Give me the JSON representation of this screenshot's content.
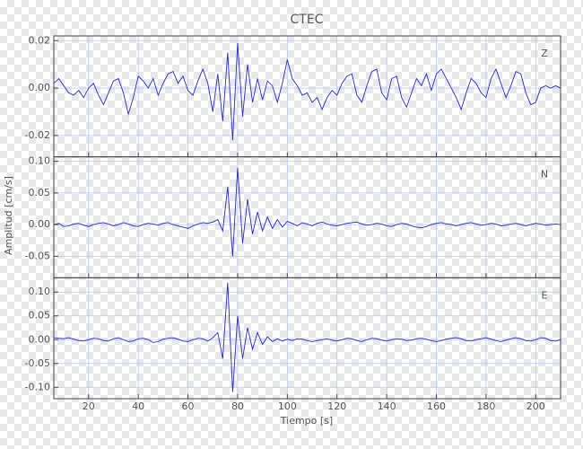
{
  "chart_data": {
    "type": "line",
    "title": "CTEC",
    "xlabel": "Tiempo [s]",
    "ylabel": "Amplitud [cm/s]",
    "grid": true,
    "xlim": [
      6,
      210
    ],
    "xticks": [
      20,
      40,
      60,
      80,
      100,
      120,
      140,
      160,
      180,
      200
    ],
    "x": [
      6,
      8,
      10,
      12,
      14,
      16,
      18,
      20,
      22,
      24,
      26,
      28,
      30,
      32,
      34,
      36,
      38,
      40,
      42,
      44,
      46,
      48,
      50,
      52,
      54,
      56,
      58,
      60,
      62,
      64,
      66,
      68,
      70,
      72,
      74,
      76,
      78,
      80,
      82,
      84,
      86,
      88,
      90,
      92,
      94,
      96,
      98,
      100,
      102,
      104,
      106,
      108,
      110,
      112,
      114,
      116,
      118,
      120,
      122,
      124,
      126,
      128,
      130,
      132,
      134,
      136,
      138,
      140,
      142,
      144,
      146,
      148,
      150,
      152,
      154,
      156,
      158,
      160,
      162,
      164,
      166,
      168,
      170,
      172,
      174,
      176,
      178,
      180,
      182,
      184,
      186,
      188,
      190,
      192,
      194,
      196,
      198,
      200,
      202,
      204,
      206,
      208,
      210
    ],
    "series": [
      {
        "name": "Z",
        "color": "#2a2ac0",
        "ylim": [
          -0.029,
          0.022
        ],
        "yticks": [
          {
            "value": 0.02,
            "label": "0.02"
          },
          {
            "value": 0,
            "label": "0.00"
          },
          {
            "value": -0.02,
            "label": "-0.02"
          }
        ],
        "values": [
          0.002,
          0.004,
          0.001,
          -0.002,
          -0.003,
          -0.001,
          -0.004,
          0.0,
          0.002,
          -0.003,
          -0.007,
          -0.002,
          0.003,
          0.004,
          -0.002,
          -0.011,
          -0.004,
          0.005,
          0.003,
          0.0,
          0.004,
          -0.003,
          0.002,
          0.006,
          0.007,
          0.002,
          0.005,
          -0.001,
          -0.003,
          0.003,
          0.008,
          0.002,
          -0.01,
          0.006,
          -0.014,
          0.015,
          -0.022,
          0.019,
          -0.012,
          0.01,
          -0.006,
          0.004,
          -0.005,
          0.003,
          0.001,
          -0.006,
          0.002,
          0.012,
          0.004,
          0.001,
          -0.003,
          -0.002,
          -0.006,
          -0.004,
          -0.009,
          -0.004,
          -0.001,
          -0.003,
          0.002,
          0.005,
          0.006,
          -0.003,
          -0.006,
          0.001,
          0.007,
          0.008,
          -0.002,
          -0.005,
          0.004,
          0.005,
          -0.004,
          -0.008,
          -0.002,
          0.004,
          0.001,
          0.006,
          -0.001,
          0.006,
          0.008,
          0.004,
          0.0,
          -0.004,
          -0.009,
          -0.002,
          0.004,
          0.002,
          -0.002,
          -0.004,
          0.004,
          0.008,
          0.002,
          -0.004,
          0.001,
          0.007,
          0.006,
          -0.002,
          -0.007,
          -0.006,
          0.0,
          0.001,
          0.0,
          0.001,
          0.0
        ]
      },
      {
        "name": "N",
        "color": "#2a2ac0",
        "ylim": [
          -0.084,
          0.107
        ],
        "yticks": [
          {
            "value": 0.1,
            "label": "0.10"
          },
          {
            "value": 0.05,
            "label": "0.05"
          },
          {
            "value": 0,
            "label": "0.00"
          },
          {
            "value": -0.05,
            "label": "-0.05"
          }
        ],
        "values": [
          0.0,
          0.002,
          -0.003,
          -0.002,
          0.001,
          0.002,
          -0.001,
          -0.003,
          0.0,
          0.002,
          0.003,
          0.001,
          -0.002,
          0.0,
          0.003,
          0.001,
          -0.002,
          -0.003,
          0.0,
          0.002,
          0.001,
          -0.001,
          0.002,
          0.003,
          0.0,
          -0.002,
          -0.004,
          -0.006,
          -0.002,
          0.001,
          0.003,
          0.002,
          0.004,
          0.008,
          -0.01,
          0.06,
          -0.05,
          0.09,
          -0.03,
          0.04,
          -0.015,
          0.02,
          -0.01,
          0.012,
          -0.006,
          0.008,
          -0.004,
          0.005,
          0.002,
          -0.002,
          0.003,
          0.001,
          -0.002,
          0.002,
          0.004,
          0.001,
          -0.001,
          -0.002,
          0.0,
          0.002,
          0.003,
          0.004,
          0.001,
          -0.001,
          0.0,
          0.002,
          0.001,
          -0.002,
          -0.003,
          0.0,
          0.002,
          0.001,
          -0.002,
          -0.004,
          -0.005,
          -0.003,
          0.0,
          0.002,
          0.003,
          0.001,
          0.0,
          -0.002,
          0.0,
          0.002,
          0.003,
          0.001,
          -0.001,
          0.0,
          0.002,
          0.001,
          -0.002,
          -0.001,
          0.001,
          0.002,
          0.0,
          -0.002,
          0.0,
          0.002,
          0.001,
          -0.001,
          0.0,
          0.001,
          0.0
        ]
      },
      {
        "name": "E",
        "color": "#2a2ac0",
        "ylim": [
          -0.124,
          0.13
        ],
        "yticks": [
          {
            "value": 0.1,
            "label": "0.10"
          },
          {
            "value": 0.05,
            "label": "0.05"
          },
          {
            "value": 0,
            "label": "0.00"
          },
          {
            "value": -0.05,
            "label": "-0.05"
          },
          {
            "value": -0.1,
            "label": "-0.10"
          }
        ],
        "values": [
          0.004,
          0.003,
          0.002,
          0.004,
          0.001,
          -0.002,
          -0.003,
          0.0,
          0.003,
          0.002,
          -0.002,
          -0.003,
          0.002,
          0.004,
          0.0,
          -0.004,
          -0.003,
          0.002,
          0.003,
          0.0,
          -0.006,
          -0.004,
          0.001,
          0.003,
          0.004,
          0.001,
          -0.003,
          -0.004,
          0.0,
          0.003,
          0.002,
          -0.003,
          0.004,
          0.015,
          -0.04,
          0.12,
          -0.11,
          0.05,
          -0.04,
          0.025,
          -0.02,
          0.015,
          -0.01,
          0.006,
          -0.004,
          0.002,
          -0.003,
          0.001,
          -0.002,
          0.002,
          0.001,
          -0.002,
          -0.004,
          -0.002,
          0.0,
          0.002,
          -0.001,
          -0.003,
          0.0,
          0.003,
          0.002,
          -0.002,
          -0.004,
          0.0,
          0.003,
          0.002,
          -0.001,
          -0.003,
          0.0,
          0.002,
          0.001,
          -0.002,
          -0.001,
          0.002,
          0.003,
          0.001,
          -0.002,
          -0.004,
          -0.002,
          0.001,
          0.003,
          0.004,
          0.002,
          -0.002,
          -0.003,
          0.0,
          0.002,
          0.004,
          0.001,
          -0.002,
          -0.004,
          -0.001,
          0.002,
          0.004,
          0.002,
          -0.002,
          -0.003,
          0.0,
          0.004,
          0.003,
          -0.002,
          -0.003,
          0.0
        ]
      }
    ]
  }
}
